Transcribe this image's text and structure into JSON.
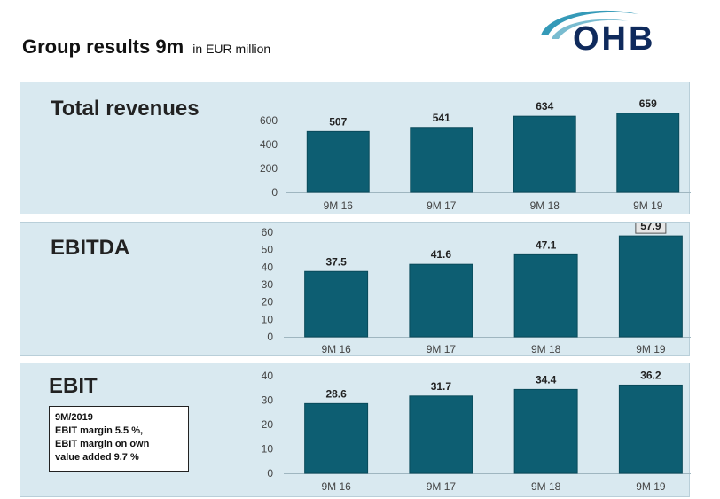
{
  "header": {
    "title": "Group results 9m",
    "subtitle": "in EUR million"
  },
  "logo": {
    "text": "OHB",
    "color": "#0f2a5c",
    "swoosh_color": "#1f8fb0"
  },
  "colors": {
    "bar": "#0d5e72",
    "bar_edge": "#094a5a",
    "panel_bg": "#d9e9f0",
    "axis_text": "#444444",
    "value_text": "#222222"
  },
  "chart_data": [
    {
      "type": "bar",
      "title": "Total revenues",
      "categories": [
        "9M 16",
        "9M 17",
        "9M 18",
        "9M 19"
      ],
      "values": [
        507,
        541,
        634,
        659
      ],
      "value_labels": [
        "507",
        "541",
        "634",
        "659"
      ],
      "yticks": [
        "0",
        "200",
        "400",
        "600"
      ],
      "ylim": [
        0,
        650
      ],
      "highlight_index": -1,
      "xlabel": "",
      "ylabel": ""
    },
    {
      "type": "bar",
      "title": "EBITDA",
      "categories": [
        "9M 16",
        "9M 17",
        "9M 18",
        "9M 19"
      ],
      "values": [
        37.5,
        41.6,
        47.1,
        57.9
      ],
      "value_labels": [
        "37.5",
        "41.6",
        "47.1",
        "57.9"
      ],
      "yticks": [
        "0",
        "10",
        "20",
        "30",
        "40",
        "50",
        "60"
      ],
      "ylim": [
        0,
        60
      ],
      "highlight_index": 3,
      "xlabel": "",
      "ylabel": ""
    },
    {
      "type": "bar",
      "title": "EBIT",
      "categories": [
        "9M 16",
        "9M 17",
        "9M 18",
        "9M 19"
      ],
      "values": [
        28.6,
        31.7,
        34.4,
        36.2
      ],
      "value_labels": [
        "28.6",
        "31.7",
        "34.4",
        "36.2"
      ],
      "yticks": [
        "0",
        "10",
        "20",
        "30",
        "40"
      ],
      "ylim": [
        0,
        40
      ],
      "highlight_index": -1,
      "xlabel": "",
      "ylabel": ""
    }
  ],
  "ebit_note": {
    "line1": "9M/2019",
    "line2": "EBIT margin 5.5 %,",
    "line3": "EBIT margin on own",
    "line4": "value added 9.7 %"
  }
}
